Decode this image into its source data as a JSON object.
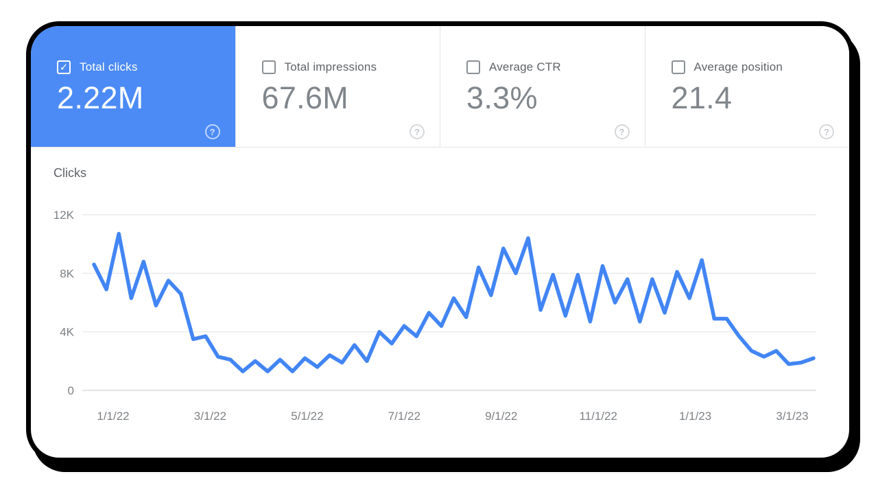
{
  "metrics": {
    "check_glyph": "✓",
    "help_glyph": "?",
    "cards": [
      {
        "id": "total-clicks",
        "label": "Total clicks",
        "value": "2.22M",
        "checked": true,
        "selected": true
      },
      {
        "id": "total-impressions",
        "label": "Total impressions",
        "value": "67.6M",
        "checked": false,
        "selected": false
      },
      {
        "id": "average-ctr",
        "label": "Average CTR",
        "value": "3.3%",
        "checked": false,
        "selected": false
      },
      {
        "id": "average-position",
        "label": "Average position",
        "value": "21.4",
        "checked": false,
        "selected": false
      }
    ]
  },
  "chart_data": {
    "type": "line",
    "title": "Clicks",
    "cadence": "weekly",
    "ylim": [
      0,
      12000
    ],
    "grid": "horizontal",
    "legend": "none",
    "y_ticks": {
      "labels": [
        "12K",
        "8K",
        "4K",
        "0"
      ],
      "values": [
        12000,
        8000,
        4000,
        0
      ]
    },
    "x_tick_labels": [
      "1/1/22",
      "3/1/22",
      "5/1/22",
      "7/1/22",
      "9/1/22",
      "11/1/22",
      "1/1/23",
      "3/1/23"
    ],
    "series": [
      {
        "name": "Total clicks",
        "color": "#4285f4",
        "values": [
          8600,
          6900,
          10700,
          6300,
          8800,
          5800,
          7500,
          6600,
          3500,
          3700,
          2300,
          2100,
          1300,
          2000,
          1300,
          2100,
          1300,
          2200,
          1600,
          2400,
          1900,
          3100,
          2000,
          4000,
          3200,
          4400,
          3700,
          5300,
          4400,
          6300,
          5000,
          8400,
          6500,
          9700,
          8000,
          10400,
          5500,
          7900,
          5100,
          7900,
          4700,
          8500,
          6000,
          7600,
          4700,
          7600,
          5300,
          8100,
          6300,
          8900,
          4900,
          4900,
          3700,
          2700,
          2300,
          2700,
          1800,
          1900,
          2200
        ]
      }
    ]
  },
  "colors": {
    "selected_card_bg": "#4c8bf5",
    "line": "#4285f4",
    "frame_border": "#000000",
    "label_text": "#5f6368",
    "value_text": "#80868b",
    "tick_text": "#7d8185",
    "gridline": "#e8eaed",
    "zero_gridline": "#dadce0",
    "divider": "#e4e4e4"
  }
}
